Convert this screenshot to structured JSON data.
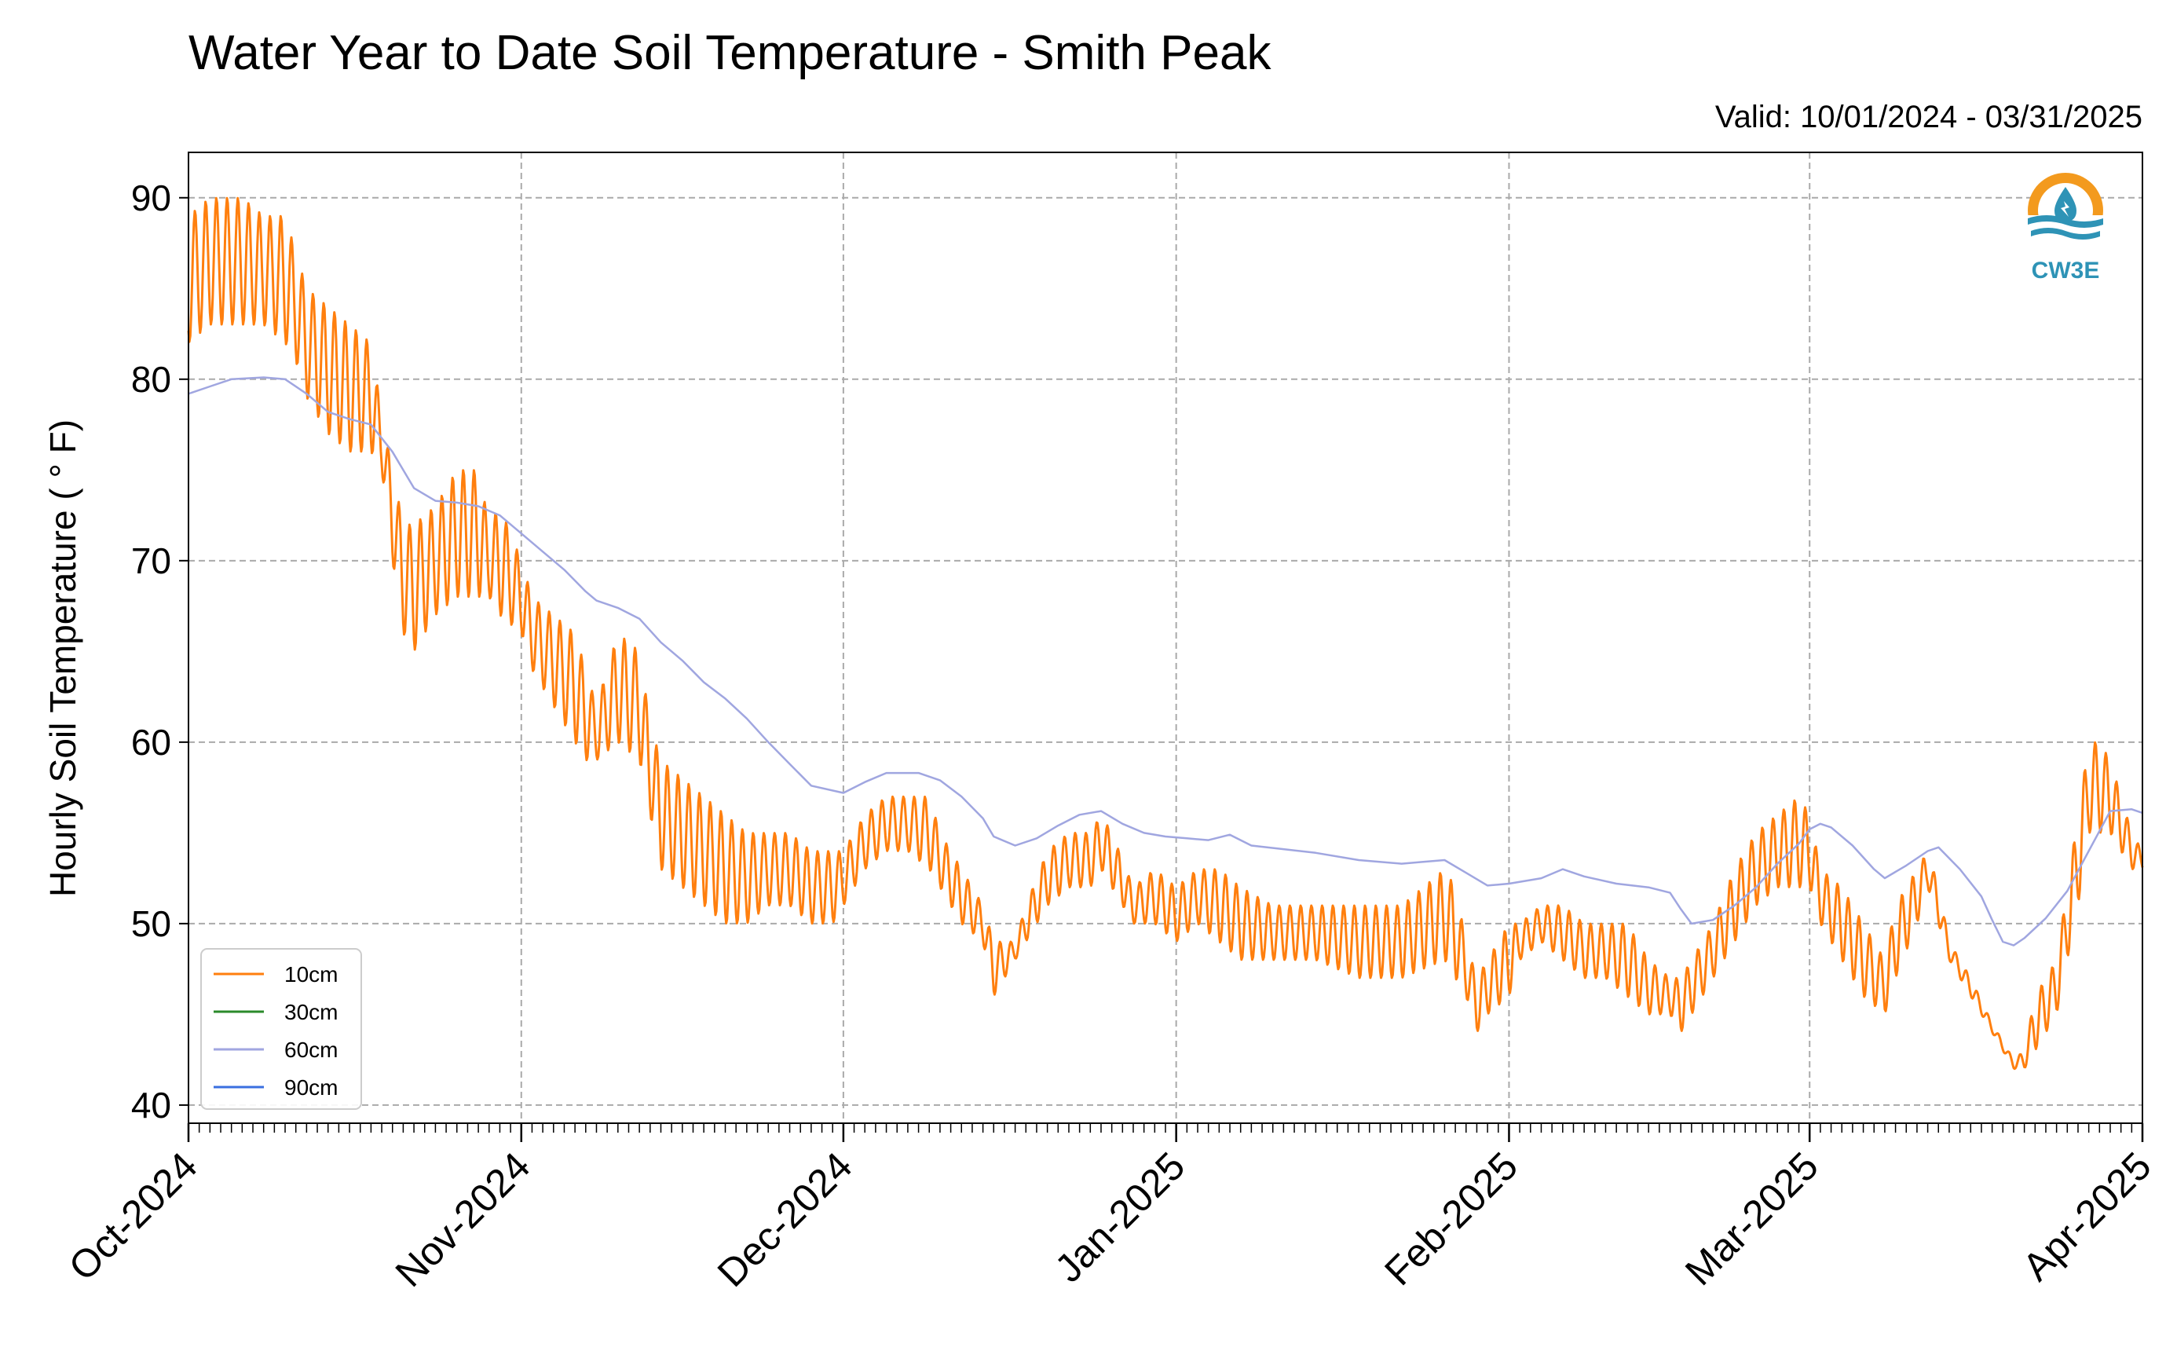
{
  "chart_data": {
    "type": "line",
    "title": "Water Year to Date Soil Temperature - Smith Peak",
    "subtitle": "Valid: 10/01/2024 - 03/31/2025",
    "ylabel": "Hourly Soil Temperature ( ° F)",
    "xlabel": "",
    "ylim": [
      39,
      92.5
    ],
    "xlim": [
      "2024-10-01",
      "2025-04-01"
    ],
    "grid": true,
    "legend_position": "lower-left",
    "logo_text": "CW3E",
    "ytick_labels": [
      "40",
      "50",
      "60",
      "70",
      "80",
      "90"
    ],
    "ytick_values": [
      40,
      50,
      60,
      70,
      80,
      90
    ],
    "xtick_labels": [
      "Oct-2024",
      "Nov-2024",
      "Dec-2024",
      "Jan-2025",
      "Feb-2025",
      "Mar-2025",
      "Apr-2025"
    ],
    "xtick_dates": [
      "2024-10-01",
      "2024-11-01",
      "2024-12-01",
      "2025-01-01",
      "2025-02-01",
      "2025-03-01",
      "2025-04-01"
    ],
    "colors": {
      "10cm": "#ff7f0e",
      "30cm": "#2a8a2a",
      "60cm": "#a0a6e0",
      "90cm": "#3a6fe0"
    },
    "series": [
      {
        "name": "10cm",
        "color": "#ff7f0e",
        "diurnal": true,
        "points": [
          [
            "2024-10-01",
            82,
            89
          ],
          [
            "2024-10-03",
            83,
            90
          ],
          [
            "2024-10-06",
            83,
            90
          ],
          [
            "2024-10-08",
            83,
            89
          ],
          [
            "2024-10-10",
            82,
            89
          ],
          [
            "2024-10-11",
            81,
            87
          ],
          [
            "2024-10-12",
            79,
            85
          ],
          [
            "2024-10-14",
            77,
            84
          ],
          [
            "2024-10-16",
            76,
            83
          ],
          [
            "2024-10-18",
            76,
            82
          ],
          [
            "2024-10-19",
            75,
            78
          ],
          [
            "2024-10-20",
            70,
            75
          ],
          [
            "2024-10-21",
            66,
            72
          ],
          [
            "2024-10-22",
            65,
            72
          ],
          [
            "2024-10-24",
            67,
            73
          ],
          [
            "2024-10-26",
            68,
            75
          ],
          [
            "2024-10-28",
            68,
            75
          ],
          [
            "2024-10-29",
            68,
            72
          ],
          [
            "2024-10-30",
            67,
            73
          ],
          [
            "2024-11-01",
            66,
            70
          ],
          [
            "2024-11-02",
            64,
            68
          ],
          [
            "2024-11-04",
            62,
            67
          ],
          [
            "2024-11-06",
            60,
            66
          ],
          [
            "2024-11-07",
            59,
            64
          ],
          [
            "2024-11-08",
            59,
            62
          ],
          [
            "2024-11-10",
            60,
            66
          ],
          [
            "2024-11-12",
            59,
            65
          ],
          [
            "2024-11-13",
            56,
            61
          ],
          [
            "2024-11-14",
            53,
            59
          ],
          [
            "2024-11-16",
            52,
            58
          ],
          [
            "2024-11-18",
            51,
            57
          ],
          [
            "2024-11-20",
            50,
            56
          ],
          [
            "2024-11-22",
            50,
            55
          ],
          [
            "2024-11-24",
            51,
            55
          ],
          [
            "2024-11-26",
            51,
            55
          ],
          [
            "2024-11-28",
            50,
            54
          ],
          [
            "2024-11-30",
            50,
            54
          ],
          [
            "2024-12-01",
            51,
            54
          ],
          [
            "2024-12-03",
            53,
            56
          ],
          [
            "2024-12-05",
            54,
            57
          ],
          [
            "2024-12-07",
            54,
            57
          ],
          [
            "2024-12-09",
            53,
            57
          ],
          [
            "2024-12-10",
            52,
            55
          ],
          [
            "2024-12-12",
            50,
            53
          ],
          [
            "2024-12-14",
            49,
            51
          ],
          [
            "2024-12-15",
            46,
            49
          ],
          [
            "2024-12-16",
            47,
            49
          ],
          [
            "2024-12-17",
            48,
            49
          ],
          [
            "2024-12-18",
            49,
            51
          ],
          [
            "2024-12-20",
            51,
            54
          ],
          [
            "2024-12-22",
            52,
            55
          ],
          [
            "2024-12-24",
            52,
            55
          ],
          [
            "2024-12-25",
            53,
            56
          ],
          [
            "2024-12-26",
            52,
            55
          ],
          [
            "2024-12-28",
            50,
            52
          ],
          [
            "2024-12-30",
            50,
            53
          ],
          [
            "2025-01-01",
            49,
            52
          ],
          [
            "2025-01-03",
            50,
            53
          ],
          [
            "2025-01-05",
            49,
            53
          ],
          [
            "2025-01-07",
            48,
            52
          ],
          [
            "2025-01-10",
            48,
            51
          ],
          [
            "2025-01-14",
            48,
            51
          ],
          [
            "2025-01-18",
            47,
            51
          ],
          [
            "2025-01-22",
            47,
            51
          ],
          [
            "2025-01-26",
            48,
            53
          ],
          [
            "2025-01-27",
            47,
            52
          ],
          [
            "2025-01-28",
            46,
            49
          ],
          [
            "2025-01-29",
            44,
            47
          ],
          [
            "2025-01-30",
            45,
            48
          ],
          [
            "2025-02-01",
            46,
            50
          ],
          [
            "2025-02-02",
            48,
            50
          ],
          [
            "2025-02-04",
            49,
            51
          ],
          [
            "2025-02-06",
            48,
            51
          ],
          [
            "2025-02-08",
            47,
            50
          ],
          [
            "2025-02-10",
            47,
            50
          ],
          [
            "2025-02-12",
            46,
            50
          ],
          [
            "2025-02-14",
            45,
            48
          ],
          [
            "2025-02-16",
            45,
            47
          ],
          [
            "2025-02-17",
            44,
            47
          ],
          [
            "2025-02-18",
            45,
            48
          ],
          [
            "2025-02-20",
            47,
            50
          ],
          [
            "2025-02-22",
            49,
            53
          ],
          [
            "2025-02-24",
            51,
            55
          ],
          [
            "2025-02-26",
            52,
            56
          ],
          [
            "2025-02-28",
            52,
            57
          ],
          [
            "2025-03-01",
            52,
            56
          ],
          [
            "2025-03-02",
            50,
            53
          ],
          [
            "2025-03-04",
            48,
            52
          ],
          [
            "2025-03-06",
            46,
            50
          ],
          [
            "2025-03-08",
            45,
            48
          ],
          [
            "2025-03-09",
            47,
            51
          ],
          [
            "2025-03-11",
            50,
            53
          ],
          [
            "2025-03-12",
            52,
            54
          ],
          [
            "2025-03-13",
            50,
            52
          ],
          [
            "2025-03-14",
            48,
            49
          ],
          [
            "2025-03-16",
            46,
            47
          ],
          [
            "2025-03-18",
            44,
            44.5
          ],
          [
            "2025-03-20",
            42,
            42.5
          ],
          [
            "2025-03-21",
            42,
            43
          ],
          [
            "2025-03-22",
            43,
            46
          ],
          [
            "2025-03-24",
            45,
            48
          ],
          [
            "2025-03-25",
            48,
            52
          ],
          [
            "2025-03-26",
            51,
            56
          ],
          [
            "2025-03-27",
            55,
            60
          ],
          [
            "2025-03-28",
            55,
            60
          ],
          [
            "2025-03-29",
            55,
            59
          ],
          [
            "2025-03-30",
            54,
            57
          ],
          [
            "2025-03-31",
            53,
            55
          ],
          [
            "2025-04-01",
            53,
            54
          ]
        ]
      },
      {
        "name": "30cm",
        "color": "#2a8a2a",
        "points": []
      },
      {
        "name": "60cm",
        "color": "#a0a6e0",
        "points": [
          [
            "2024-10-01",
            79.2
          ],
          [
            "2024-10-03",
            79.6
          ],
          [
            "2024-10-05",
            80.0
          ],
          [
            "2024-10-08",
            80.1
          ],
          [
            "2024-10-10",
            80.0
          ],
          [
            "2024-10-12",
            79.2
          ],
          [
            "2024-10-14",
            78.2
          ],
          [
            "2024-10-16",
            77.8
          ],
          [
            "2024-10-18",
            77.5
          ],
          [
            "2024-10-20",
            76.0
          ],
          [
            "2024-10-22",
            74.0
          ],
          [
            "2024-10-24",
            73.3
          ],
          [
            "2024-10-26",
            73.2
          ],
          [
            "2024-10-28",
            73.0
          ],
          [
            "2024-10-30",
            72.5
          ],
          [
            "2024-11-01",
            71.5
          ],
          [
            "2024-11-03",
            70.5
          ],
          [
            "2024-11-05",
            69.5
          ],
          [
            "2024-11-07",
            68.3
          ],
          [
            "2024-11-08",
            67.8
          ],
          [
            "2024-11-10",
            67.4
          ],
          [
            "2024-11-12",
            66.8
          ],
          [
            "2024-11-14",
            65.5
          ],
          [
            "2024-11-16",
            64.5
          ],
          [
            "2024-11-18",
            63.3
          ],
          [
            "2024-11-20",
            62.4
          ],
          [
            "2024-11-22",
            61.3
          ],
          [
            "2024-11-24",
            60.0
          ],
          [
            "2024-11-26",
            58.8
          ],
          [
            "2024-11-28",
            57.6
          ],
          [
            "2024-12-01",
            57.2
          ],
          [
            "2024-12-03",
            57.8
          ],
          [
            "2024-12-05",
            58.3
          ],
          [
            "2024-12-08",
            58.3
          ],
          [
            "2024-12-10",
            57.9
          ],
          [
            "2024-12-12",
            57.0
          ],
          [
            "2024-12-14",
            55.8
          ],
          [
            "2024-12-15",
            54.8
          ],
          [
            "2024-12-17",
            54.3
          ],
          [
            "2024-12-19",
            54.7
          ],
          [
            "2024-12-21",
            55.4
          ],
          [
            "2024-12-23",
            56.0
          ],
          [
            "2024-12-25",
            56.2
          ],
          [
            "2024-12-27",
            55.5
          ],
          [
            "2024-12-29",
            55.0
          ],
          [
            "2024-12-31",
            54.8
          ],
          [
            "2025-01-02",
            54.7
          ],
          [
            "2025-01-04",
            54.6
          ],
          [
            "2025-01-06",
            54.9
          ],
          [
            "2025-01-08",
            54.3
          ],
          [
            "2025-01-11",
            54.1
          ],
          [
            "2025-01-14",
            53.9
          ],
          [
            "2025-01-18",
            53.5
          ],
          [
            "2025-01-22",
            53.3
          ],
          [
            "2025-01-24",
            53.4
          ],
          [
            "2025-01-26",
            53.5
          ],
          [
            "2025-01-28",
            52.8
          ],
          [
            "2025-01-30",
            52.1
          ],
          [
            "2025-02-01",
            52.2
          ],
          [
            "2025-02-04",
            52.5
          ],
          [
            "2025-02-06",
            53.0
          ],
          [
            "2025-02-08",
            52.6
          ],
          [
            "2025-02-11",
            52.2
          ],
          [
            "2025-02-14",
            52.0
          ],
          [
            "2025-02-16",
            51.7
          ],
          [
            "2025-02-17",
            50.8
          ],
          [
            "2025-02-18",
            50.0
          ],
          [
            "2025-02-20",
            50.2
          ],
          [
            "2025-02-22",
            51.0
          ],
          [
            "2025-02-24",
            52.0
          ],
          [
            "2025-02-26",
            53.3
          ],
          [
            "2025-02-28",
            54.4
          ],
          [
            "2025-03-01",
            55.2
          ],
          [
            "2025-03-02",
            55.5
          ],
          [
            "2025-03-03",
            55.3
          ],
          [
            "2025-03-05",
            54.3
          ],
          [
            "2025-03-07",
            53.0
          ],
          [
            "2025-03-08",
            52.5
          ],
          [
            "2025-03-10",
            53.2
          ],
          [
            "2025-03-12",
            54.0
          ],
          [
            "2025-03-13",
            54.2
          ],
          [
            "2025-03-15",
            53.0
          ],
          [
            "2025-03-17",
            51.5
          ],
          [
            "2025-03-18",
            50.2
          ],
          [
            "2025-03-19",
            49.0
          ],
          [
            "2025-03-20",
            48.8
          ],
          [
            "2025-03-21",
            49.2
          ],
          [
            "2025-03-23",
            50.3
          ],
          [
            "2025-03-25",
            51.8
          ],
          [
            "2025-03-27",
            54.0
          ],
          [
            "2025-03-29",
            56.2
          ],
          [
            "2025-03-31",
            56.3
          ],
          [
            "2025-04-01",
            56.1
          ]
        ]
      },
      {
        "name": "90cm",
        "color": "#3a6fe0",
        "points": []
      }
    ]
  }
}
